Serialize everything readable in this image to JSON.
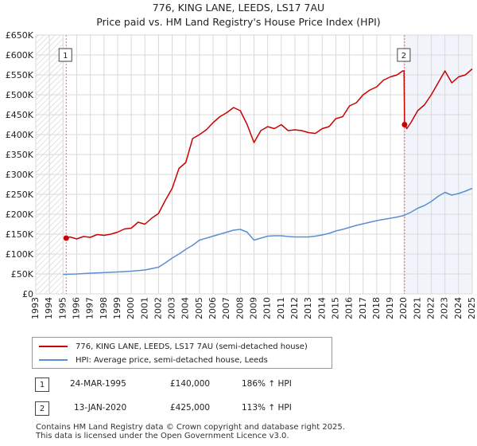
{
  "title": "776, KING LANE, LEEDS, LS17 7AU",
  "subtitle": "Price paid vs. HM Land Registry's House Price Index (HPI)",
  "colors": {
    "property": "#cc0000",
    "hpi": "#5b8fd0",
    "grid": "#d9d9d9",
    "shade": "#e8eef8",
    "hatch": "#cfcfcf",
    "vline": "#e07070"
  },
  "chart_data": {
    "type": "line",
    "title": "776, KING LANE, LEEDS, LS17 7AU",
    "subtitle": "Price paid vs. HM Land Registry's House Price Index (HPI)",
    "xlabel": "",
    "ylabel": "",
    "xlim": [
      1993,
      2025
    ],
    "ylim": [
      0,
      650000
    ],
    "yticks": [
      0,
      50000,
      100000,
      150000,
      200000,
      250000,
      300000,
      350000,
      400000,
      450000,
      500000,
      550000,
      600000,
      650000
    ],
    "ytick_labels": [
      "£0",
      "£50K",
      "£100K",
      "£150K",
      "£200K",
      "£250K",
      "£300K",
      "£350K",
      "£400K",
      "£450K",
      "£500K",
      "£550K",
      "£600K",
      "£650K"
    ],
    "xticks": [
      1993,
      1994,
      1995,
      1996,
      1997,
      1998,
      1999,
      2000,
      2001,
      2002,
      2003,
      2004,
      2005,
      2006,
      2007,
      2008,
      2009,
      2010,
      2011,
      2012,
      2013,
      2014,
      2015,
      2016,
      2017,
      2018,
      2019,
      2020,
      2021,
      2022,
      2023,
      2024,
      2025
    ],
    "grid": true,
    "series": [
      {
        "name": "776, KING LANE, LEEDS, LS17 7AU (semi-detached house)",
        "color": "#cc0000",
        "x": [
          1995.23,
          1995.5,
          1996.0,
          1996.5,
          1997.0,
          1997.5,
          1998.0,
          1998.5,
          1999.0,
          1999.5,
          2000.0,
          2000.5,
          2001.0,
          2001.5,
          2002.0,
          2002.5,
          2003.0,
          2003.5,
          2004.0,
          2004.5,
          2005.0,
          2005.5,
          2006.0,
          2006.5,
          2007.0,
          2007.5,
          2008.0,
          2008.5,
          2009.0,
          2009.5,
          2010.0,
          2010.5,
          2011.0,
          2011.5,
          2012.0,
          2012.5,
          2013.0,
          2013.5,
          2014.0,
          2014.5,
          2015.0,
          2015.5,
          2016.0,
          2016.5,
          2017.0,
          2017.5,
          2018.0,
          2018.5,
          2019.0,
          2019.5,
          2019.9,
          2020.0,
          2020.04,
          2020.2,
          2020.5,
          2021.0,
          2021.5,
          2022.0,
          2022.5,
          2023.0,
          2023.5,
          2024.0,
          2024.5,
          2025.0
        ],
        "values": [
          140000,
          143000,
          138000,
          144000,
          142000,
          149000,
          147000,
          150000,
          155000,
          163000,
          165000,
          180000,
          175000,
          190000,
          202000,
          235000,
          265000,
          315000,
          330000,
          390000,
          400000,
          412000,
          430000,
          445000,
          455000,
          468000,
          460000,
          425000,
          380000,
          410000,
          420000,
          415000,
          425000,
          410000,
          412000,
          410000,
          405000,
          403000,
          415000,
          420000,
          440000,
          445000,
          472000,
          480000,
          500000,
          512000,
          520000,
          537000,
          545000,
          550000,
          560000,
          560000,
          425000,
          415000,
          430000,
          460000,
          475000,
          500000,
          530000,
          560000,
          530000,
          545000,
          550000,
          565000
        ]
      },
      {
        "name": "HPI: Average price, semi-detached house, Leeds",
        "color": "#5b8fd0",
        "x": [
          1995.0,
          1995.5,
          1996.0,
          1997.0,
          1998.0,
          1999.0,
          2000.0,
          2001.0,
          2002.0,
          2002.5,
          2003.0,
          2003.5,
          2004.0,
          2004.5,
          2005.0,
          2005.5,
          2006.0,
          2006.5,
          2007.0,
          2007.5,
          2008.0,
          2008.5,
          2009.0,
          2009.5,
          2010.0,
          2010.5,
          2011.0,
          2011.5,
          2012.0,
          2012.5,
          2013.0,
          2013.5,
          2014.0,
          2014.5,
          2015.0,
          2015.5,
          2016.0,
          2016.5,
          2017.0,
          2017.5,
          2018.0,
          2018.5,
          2019.0,
          2019.5,
          2020.0,
          2020.5,
          2021.0,
          2021.5,
          2022.0,
          2022.5,
          2023.0,
          2023.5,
          2024.0,
          2024.5,
          2025.0
        ],
        "values": [
          49000,
          49500,
          50000,
          52000,
          53500,
          55000,
          57000,
          60000,
          67000,
          78000,
          90000,
          100000,
          112000,
          122000,
          135000,
          140000,
          145000,
          150000,
          155000,
          160000,
          162000,
          155000,
          135000,
          140000,
          145000,
          146000,
          146000,
          144000,
          143000,
          143000,
          143000,
          145000,
          148000,
          152000,
          158000,
          162000,
          167000,
          172000,
          176000,
          180000,
          184000,
          187000,
          190000,
          193000,
          197000,
          205000,
          215000,
          222000,
          232000,
          245000,
          255000,
          248000,
          252000,
          258000,
          265000
        ]
      }
    ],
    "annotations": [
      {
        "label": "1",
        "x": 1995.23,
        "y": 140000
      },
      {
        "label": "2",
        "x": 2020.04,
        "y": 425000
      }
    ]
  },
  "legend": {
    "items": [
      {
        "label": "776, KING LANE, LEEDS, LS17 7AU (semi-detached house)"
      },
      {
        "label": "HPI: Average price, semi-detached house, Leeds"
      }
    ]
  },
  "transactions": [
    {
      "id": "1",
      "date": "24-MAR-1995",
      "price": "£140,000",
      "hpi": "186% ↑ HPI"
    },
    {
      "id": "2",
      "date": "13-JAN-2020",
      "price": "£425,000",
      "hpi": "113% ↑ HPI"
    }
  ],
  "footer": {
    "line1": "Contains HM Land Registry data © Crown copyright and database right 2025.",
    "line2": "This data is licensed under the Open Government Licence v3.0."
  }
}
